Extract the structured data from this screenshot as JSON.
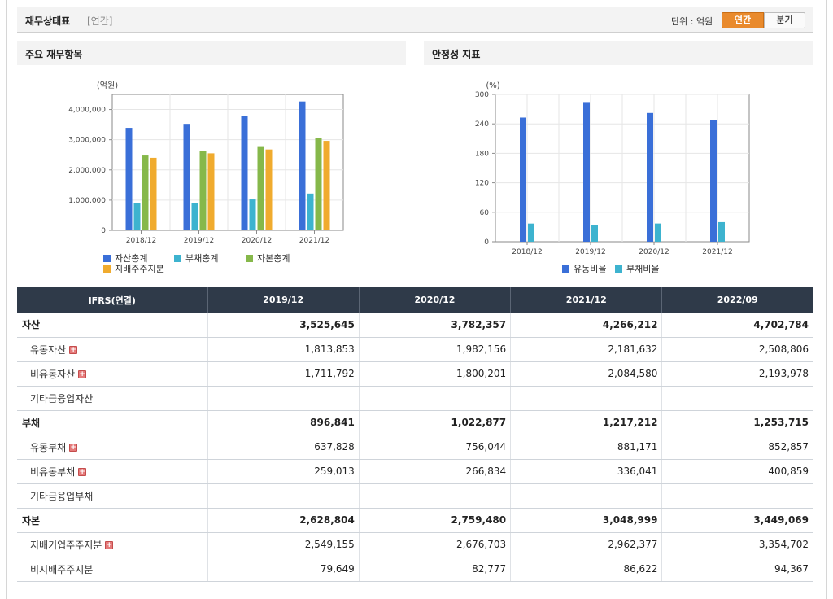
{
  "header": {
    "title": "재무상태표",
    "period": "[연간]",
    "unit": "단위 : 억원",
    "btn_annual": "연간",
    "btn_quarter": "분기"
  },
  "left_panel": {
    "title": "주요 재무항목"
  },
  "right_panel": {
    "title": "안정성 지표"
  },
  "colors": {
    "blue": "#3a6fd8",
    "cyan": "#3db3cf",
    "green": "#86b84a",
    "orange": "#f0ab2e"
  },
  "chart_data": [
    {
      "type": "bar",
      "title": "주요 재무항목",
      "ylabel": "(억원)",
      "ylim": [
        0,
        4500000
      ],
      "yticks": [
        0,
        1000000,
        2000000,
        3000000,
        4000000
      ],
      "ytick_labels": [
        "0",
        "1,000,000",
        "2,000,000",
        "3,000,000",
        "4,000,000"
      ],
      "categories": [
        "2018/12",
        "2019/12",
        "2020/12",
        "2021/12"
      ],
      "series": [
        {
          "name": "자산총계",
          "color": "#3a6fd8",
          "values": [
            3393572,
            3525645,
            3782357,
            4266212
          ]
        },
        {
          "name": "부채총계",
          "color": "#3db3cf",
          "values": [
            916041,
            896841,
            1022877,
            1217212
          ]
        },
        {
          "name": "자본총계",
          "color": "#86b84a",
          "values": [
            2477532,
            2628804,
            2759480,
            3048999
          ]
        },
        {
          "name": "지배주주지분",
          "color": "#f0ab2e",
          "values": [
            2400690,
            2549155,
            2676703,
            2962377
          ]
        }
      ]
    },
    {
      "type": "bar",
      "title": "안정성 지표",
      "ylabel": "(%)",
      "ylim": [
        0,
        300
      ],
      "yticks": [
        0,
        60,
        120,
        180,
        240,
        300
      ],
      "ytick_labels": [
        "0",
        "60",
        "120",
        "180",
        "240",
        "300"
      ],
      "categories": [
        "2018/12",
        "2019/12",
        "2020/12",
        "2021/12"
      ],
      "series": [
        {
          "name": "유동비율",
          "color": "#3a6fd8",
          "values": [
            252.8,
            284.4,
            262.2,
            247.6
          ]
        },
        {
          "name": "부채비율",
          "color": "#3db3cf",
          "values": [
            37.0,
            34.1,
            37.1,
            39.9
          ]
        }
      ]
    }
  ],
  "table": {
    "headers": [
      "IFRS(연결)",
      "2019/12",
      "2020/12",
      "2021/12",
      "2022/09"
    ],
    "rows": [
      {
        "label": "자산",
        "level": 0,
        "expand": false,
        "values": [
          "3,525,645",
          "3,782,357",
          "4,266,212",
          "4,702,784"
        ]
      },
      {
        "label": "유동자산",
        "level": 1,
        "expand": true,
        "values": [
          "1,813,853",
          "1,982,156",
          "2,181,632",
          "2,508,806"
        ]
      },
      {
        "label": "비유동자산",
        "level": 1,
        "expand": true,
        "values": [
          "1,711,792",
          "1,800,201",
          "2,084,580",
          "2,193,978"
        ]
      },
      {
        "label": "기타금융업자산",
        "level": 1,
        "expand": false,
        "values": [
          "",
          "",
          "",
          ""
        ]
      },
      {
        "label": "부채",
        "level": 0,
        "expand": false,
        "values": [
          "896,841",
          "1,022,877",
          "1,217,212",
          "1,253,715"
        ]
      },
      {
        "label": "유동부채",
        "level": 1,
        "expand": true,
        "values": [
          "637,828",
          "756,044",
          "881,171",
          "852,857"
        ]
      },
      {
        "label": "비유동부채",
        "level": 1,
        "expand": true,
        "values": [
          "259,013",
          "266,834",
          "336,041",
          "400,859"
        ]
      },
      {
        "label": "기타금융업부채",
        "level": 1,
        "expand": false,
        "values": [
          "",
          "",
          "",
          ""
        ]
      },
      {
        "label": "자본",
        "level": 0,
        "expand": false,
        "values": [
          "2,628,804",
          "2,759,480",
          "3,048,999",
          "3,449,069"
        ]
      },
      {
        "label": "지배기업주주지분",
        "level": 1,
        "expand": true,
        "values": [
          "2,549,155",
          "2,676,703",
          "2,962,377",
          "3,354,702"
        ]
      },
      {
        "label": "비지배주주지분",
        "level": 1,
        "expand": false,
        "values": [
          "79,649",
          "82,777",
          "86,622",
          "94,367"
        ]
      }
    ],
    "expand_symbol": "+"
  }
}
